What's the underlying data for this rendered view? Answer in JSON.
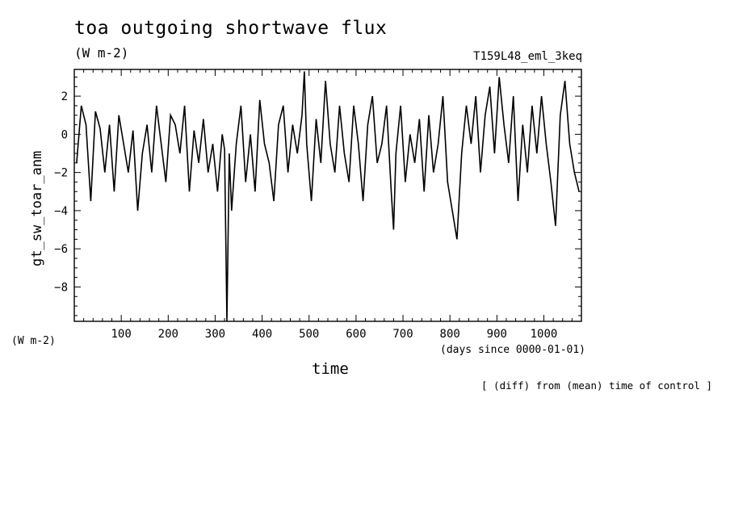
{
  "chart_data": {
    "type": "line",
    "title": "toa outgoing shortwave flux",
    "units": "(W m-2)",
    "run_label": "T159L48_eml_3keq",
    "ylabel": "gt_sw_toar_anm",
    "yunits": "(W m-2)",
    "xlabel": "time",
    "xunits": "(days since 0000-01-01)",
    "note": "[ (diff) from (mean) time of control ]",
    "xlim": [
      0,
      1080
    ],
    "ylim": [
      -9.8,
      3.4
    ],
    "xticks": [
      100,
      200,
      300,
      400,
      500,
      600,
      700,
      800,
      900,
      1000
    ],
    "yticks": [
      2,
      0,
      -2,
      -4,
      -6,
      -8
    ],
    "grid": false,
    "series": [
      {
        "x": [
          5,
          15,
          25,
          35,
          45,
          55,
          65,
          75,
          85,
          95,
          105,
          115,
          125,
          135,
          145,
          155,
          165,
          175,
          185,
          195,
          205,
          215,
          225,
          235,
          245,
          255,
          265,
          275,
          285,
          295,
          305,
          315,
          320,
          325,
          330,
          335,
          345,
          355,
          365,
          375,
          385,
          395,
          405,
          415,
          425,
          435,
          445,
          455,
          465,
          475,
          485,
          490,
          495,
          505,
          515,
          525,
          535,
          545,
          555,
          565,
          575,
          585,
          595,
          605,
          615,
          625,
          635,
          645,
          655,
          665,
          675,
          680,
          685,
          695,
          705,
          715,
          725,
          735,
          745,
          755,
          765,
          775,
          785,
          795,
          805,
          815,
          825,
          835,
          845,
          855,
          865,
          875,
          885,
          895,
          905,
          915,
          925,
          935,
          945,
          955,
          965,
          975,
          985,
          995,
          1005,
          1015,
          1025,
          1035,
          1045,
          1055,
          1065,
          1075
        ],
        "y": [
          -1.5,
          1.5,
          0.5,
          -3.5,
          1.2,
          0.3,
          -2.0,
          0.5,
          -3.0,
          1.0,
          -0.5,
          -2.0,
          0.2,
          -4.0,
          -1.0,
          0.5,
          -2.0,
          1.5,
          -0.5,
          -2.5,
          1.0,
          0.5,
          -1.0,
          1.5,
          -3.0,
          0.2,
          -1.5,
          0.8,
          -2.0,
          -0.5,
          -3.0,
          0.0,
          -0.8,
          -9.8,
          -1.0,
          -4.0,
          -0.5,
          1.5,
          -2.5,
          0.0,
          -3.0,
          1.8,
          -0.5,
          -1.5,
          -3.5,
          0.5,
          1.5,
          -2.0,
          0.5,
          -1.0,
          1.0,
          3.3,
          -0.5,
          -3.5,
          0.8,
          -1.5,
          2.8,
          -0.5,
          -2.0,
          1.5,
          -1.0,
          -2.5,
          1.5,
          -0.5,
          -3.5,
          0.5,
          2.0,
          -1.5,
          -0.5,
          1.5,
          -3.0,
          -5.0,
          -1.0,
          1.5,
          -2.5,
          0.0,
          -1.5,
          0.8,
          -3.0,
          1.0,
          -2.0,
          -0.5,
          2.0,
          -2.5,
          -4.0,
          -5.5,
          -1.0,
          1.5,
          -0.5,
          2.0,
          -2.0,
          1.0,
          2.5,
          -1.0,
          3.0,
          0.5,
          -1.5,
          2.0,
          -3.5,
          0.5,
          -2.0,
          1.5,
          -1.0,
          2.0,
          -0.5,
          -2.5,
          -4.8,
          1.0,
          2.8,
          -0.5,
          -2.0,
          -3.0
        ]
      }
    ]
  }
}
